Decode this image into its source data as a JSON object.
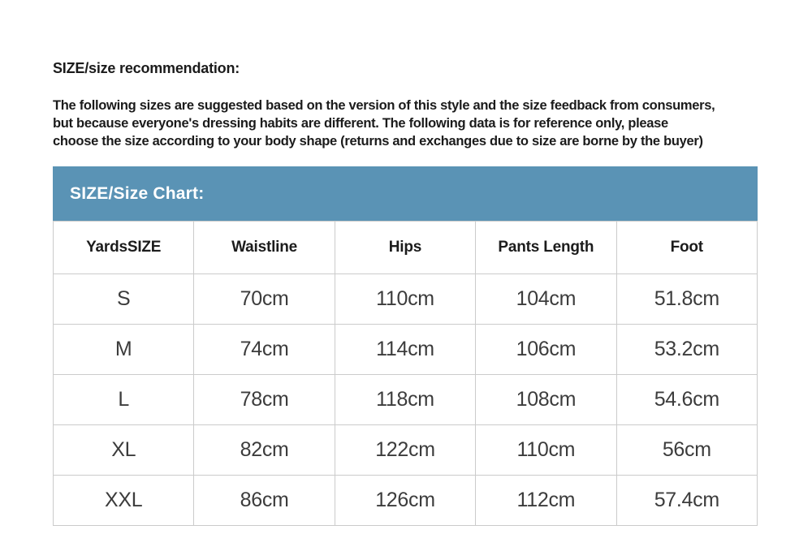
{
  "page": {
    "heading": "SIZE/size recommendation:",
    "description_lines": [
      "The following sizes are suggested based on the version of this style and the size feedback from consumers,",
      "but because everyone's dressing habits are different. The following data is for reference only, please",
      "choose the size according to your body shape (returns and exchanges due to size are borne by the buyer)"
    ]
  },
  "size_chart": {
    "banner_title": "SIZE/Size Chart:",
    "accent_color": "#5a93b5",
    "banner_text_color": "#ffffff",
    "border_color": "#cbcbcb"
  },
  "chart_data": {
    "type": "table",
    "title": "SIZE/Size Chart:",
    "columns": [
      "YardsSIZE",
      "Waistline",
      "Hips",
      "Pants Length",
      "Foot"
    ],
    "rows": [
      [
        "S",
        "70cm",
        "110cm",
        "104cm",
        "51.8cm"
      ],
      [
        "M",
        "74cm",
        "114cm",
        "106cm",
        "53.2cm"
      ],
      [
        "L",
        "78cm",
        "118cm",
        "108cm",
        "54.6cm"
      ],
      [
        "XL",
        "82cm",
        "122cm",
        "110cm",
        "56cm"
      ],
      [
        "XXL",
        "86cm",
        "126cm",
        "112cm",
        "57.4cm"
      ]
    ]
  }
}
